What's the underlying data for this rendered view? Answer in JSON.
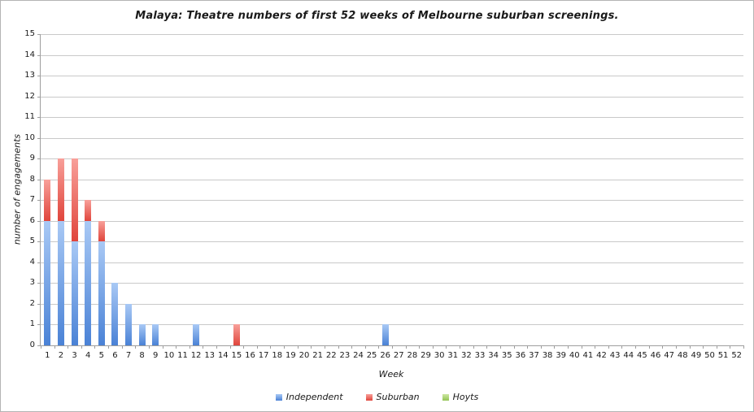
{
  "chart_data": {
    "type": "bar",
    "stacked": true,
    "title": "Malaya: Theatre numbers of first 52 weeks of Melbourne suburban screenings.",
    "xlabel": "Week",
    "ylabel": "number of engagements",
    "ylim": [
      0,
      15
    ],
    "y_tick_step": 1,
    "grid": "horizontal",
    "legend_position": "bottom",
    "categories": [
      1,
      2,
      3,
      4,
      5,
      6,
      7,
      8,
      9,
      10,
      11,
      12,
      13,
      14,
      15,
      16,
      17,
      18,
      19,
      20,
      21,
      22,
      23,
      24,
      25,
      26,
      27,
      28,
      29,
      30,
      31,
      32,
      33,
      34,
      35,
      36,
      37,
      38,
      39,
      40,
      41,
      42,
      43,
      44,
      45,
      46,
      47,
      48,
      49,
      50,
      51,
      52
    ],
    "series": [
      {
        "name": "Independent",
        "color_top": "#A9C9F5",
        "color_bottom": "#4A82D6",
        "values": [
          6,
          6,
          5,
          6,
          5,
          3,
          2,
          1,
          1,
          0,
          0,
          1,
          0,
          0,
          0,
          0,
          0,
          0,
          0,
          0,
          0,
          0,
          0,
          0,
          0,
          1,
          0,
          0,
          0,
          0,
          0,
          0,
          0,
          0,
          0,
          0,
          0,
          0,
          0,
          0,
          0,
          0,
          0,
          0,
          0,
          0,
          0,
          0,
          0,
          0,
          0,
          0
        ]
      },
      {
        "name": "Suburban",
        "color_top": "#F8A09A",
        "color_bottom": "#E0453C",
        "values": [
          2,
          3,
          4,
          1,
          1,
          0,
          0,
          0,
          0,
          0,
          0,
          0,
          0,
          0,
          1,
          0,
          0,
          0,
          0,
          0,
          0,
          0,
          0,
          0,
          0,
          0,
          0,
          0,
          0,
          0,
          0,
          0,
          0,
          0,
          0,
          0,
          0,
          0,
          0,
          0,
          0,
          0,
          0,
          0,
          0,
          0,
          0,
          0,
          0,
          0,
          0,
          0
        ]
      },
      {
        "name": "Hoyts",
        "color_top": "#CDE7A2",
        "color_bottom": "#93C455",
        "values": [
          0,
          0,
          0,
          0,
          0,
          0,
          0,
          0,
          0,
          0,
          0,
          0,
          0,
          0,
          0,
          0,
          0,
          0,
          0,
          0,
          0,
          0,
          0,
          0,
          0,
          0,
          0,
          0,
          0,
          0,
          0,
          0,
          0,
          0,
          0,
          0,
          0,
          0,
          0,
          0,
          0,
          0,
          0,
          0,
          0,
          0,
          0,
          0,
          0,
          0,
          0,
          0
        ]
      }
    ]
  }
}
